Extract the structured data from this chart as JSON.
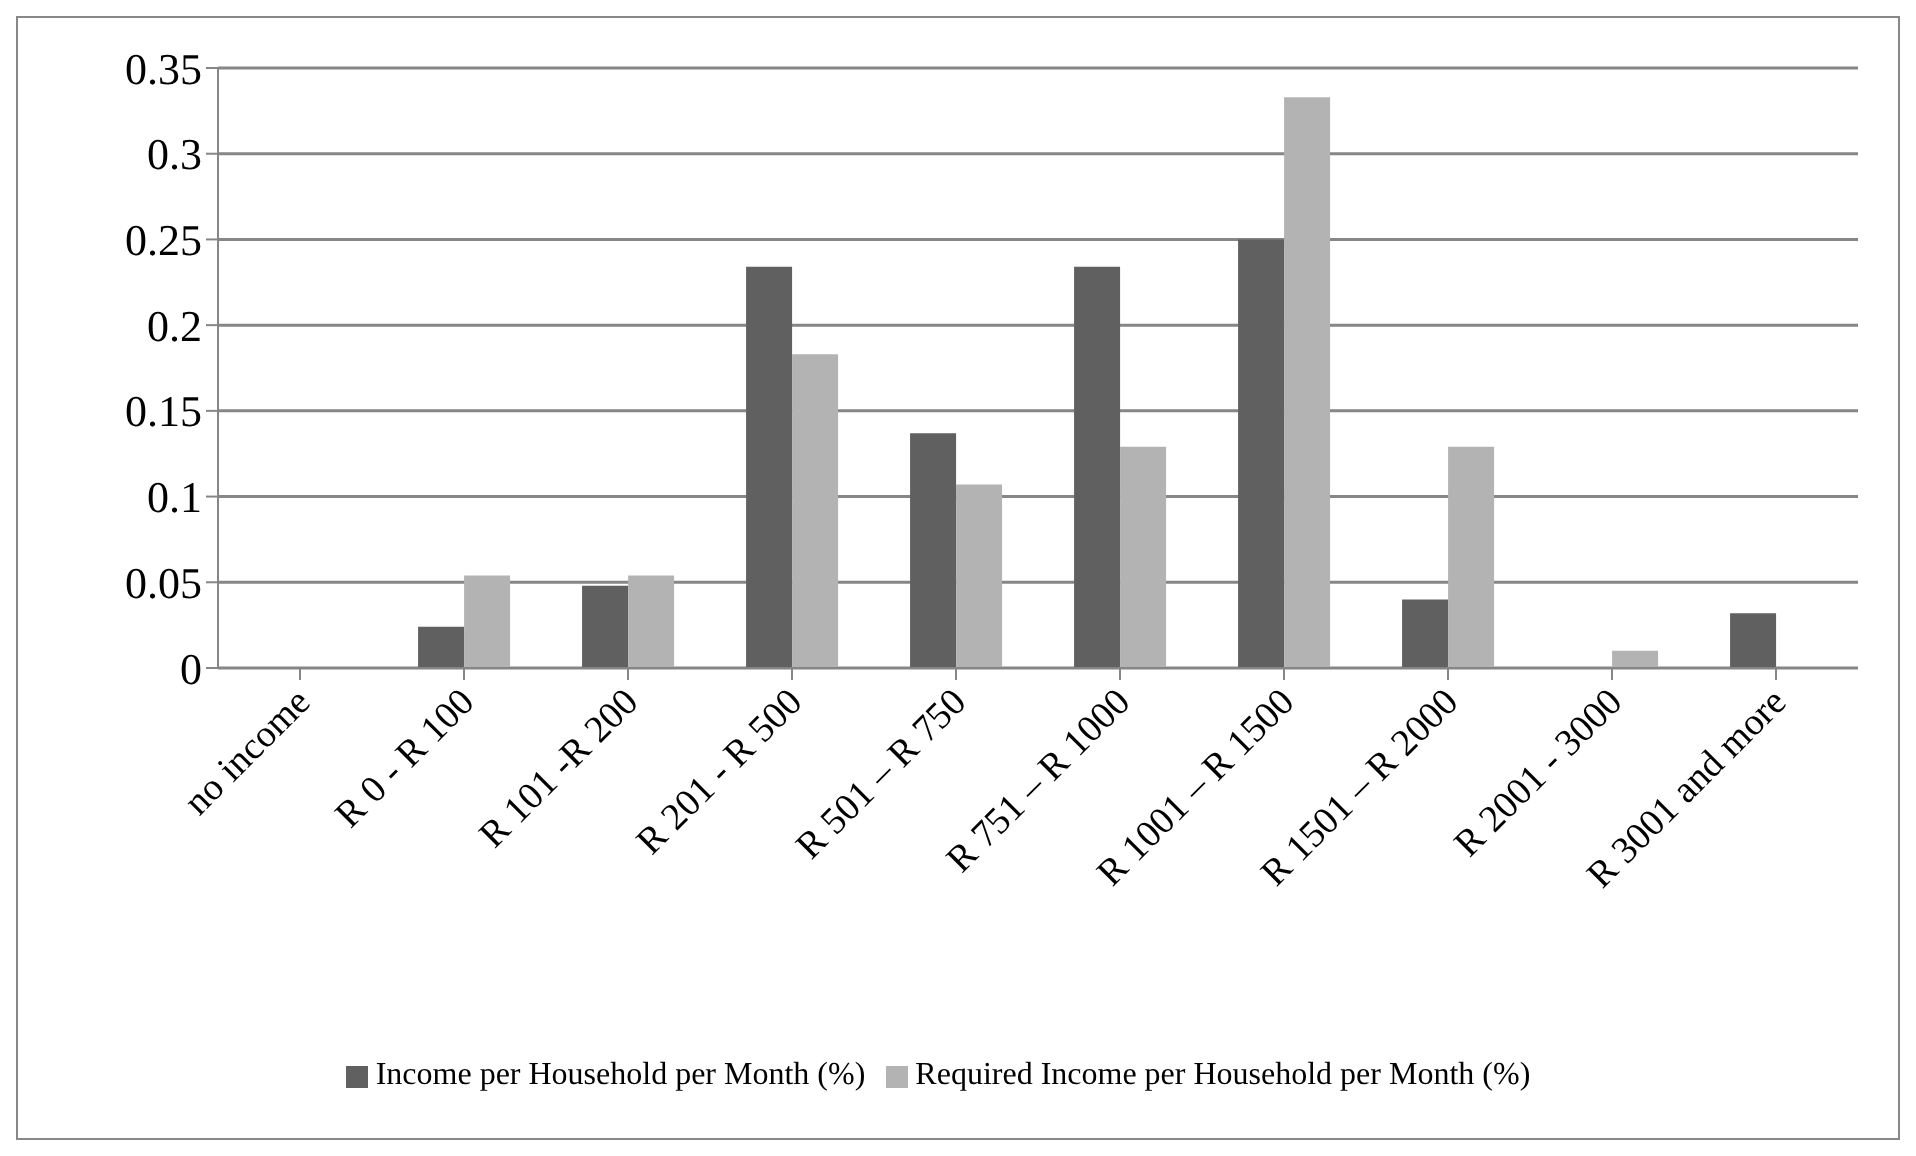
{
  "chart_data": {
    "type": "bar",
    "categories": [
      "no income",
      "R 0 - R 100",
      "R 101 -R 200",
      "R 201 - R 500",
      "R 501 – R 750",
      "R 751 – R 1000",
      "R 1001 – R 1500",
      "R 1501 – R 2000",
      "R 2001 - 3000",
      "R 3001 and more"
    ],
    "series": [
      {
        "name": "Income per Household per Month (%)",
        "color": "#606060",
        "values": [
          0,
          0.024,
          0.048,
          0.234,
          0.137,
          0.234,
          0.25,
          0.04,
          0,
          0.032
        ]
      },
      {
        "name": "Required Income per Household per Month (%)",
        "color": "#b3b3b3",
        "values": [
          0,
          0.054,
          0.054,
          0.183,
          0.107,
          0.129,
          0.333,
          0.129,
          0.01,
          0
        ]
      }
    ],
    "ylim": [
      0,
      0.35
    ],
    "yticks": [
      0,
      0.05,
      0.1,
      0.15,
      0.2,
      0.25,
      0.3,
      0.35
    ],
    "grid": "y",
    "legend": "bottom"
  }
}
